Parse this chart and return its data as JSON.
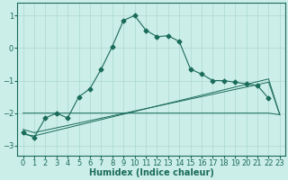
{
  "bg_color": "#cceee8",
  "line_color": "#1a6b5a",
  "grid_color": "#aad8d0",
  "xlabel": "Humidex (Indice chaleur)",
  "xlabel_fontsize": 7,
  "tick_fontsize": 6,
  "ylim": [
    -3.3,
    1.4
  ],
  "xlim": [
    -0.5,
    23.5
  ],
  "yticks": [
    -3,
    -2,
    -1,
    0,
    1
  ],
  "xticks": [
    0,
    1,
    2,
    3,
    4,
    5,
    6,
    7,
    8,
    9,
    10,
    11,
    12,
    13,
    14,
    15,
    16,
    17,
    18,
    19,
    20,
    21,
    22,
    23
  ],
  "line1_x": [
    0,
    1,
    2,
    3,
    4,
    5,
    6,
    7,
    8,
    9,
    10,
    11,
    12,
    13,
    14,
    15,
    16,
    17,
    18,
    19,
    20,
    21,
    22
  ],
  "line1_y": [
    -2.6,
    -2.75,
    -2.15,
    -2.0,
    -2.15,
    -1.5,
    -1.25,
    -0.65,
    0.05,
    0.85,
    1.0,
    0.55,
    0.35,
    0.38,
    0.2,
    -0.65,
    -0.8,
    -1.0,
    -1.0,
    -1.05,
    -1.1,
    -1.15,
    -1.55
  ],
  "line2_x": [
    0,
    3,
    10,
    22,
    23
  ],
  "line2_y": [
    -2.0,
    -2.0,
    -2.0,
    -2.0,
    -2.05
  ],
  "line3_x": [
    0,
    1,
    22,
    23
  ],
  "line3_y": [
    -2.65,
    -2.7,
    -0.95,
    -2.05
  ],
  "line4_x": [
    0,
    1,
    22,
    23
  ],
  "line4_y": [
    -2.5,
    -2.6,
    -1.05,
    -2.05
  ]
}
